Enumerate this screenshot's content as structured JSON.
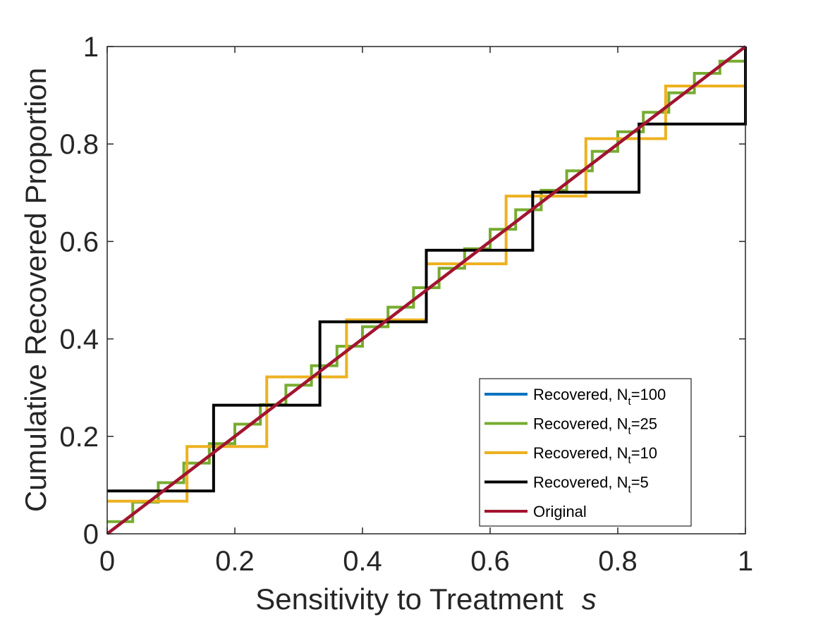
{
  "chart_data": {
    "type": "line",
    "xlabel": "Sensitivity to Treatment",
    "xlabel_symbol": "s",
    "ylabel": "Cumulative Recovered Proportion",
    "xlim": [
      0,
      1
    ],
    "ylim": [
      0,
      1
    ],
    "x_ticks": [
      0,
      0.2,
      0.4,
      0.6,
      0.8,
      1
    ],
    "y_ticks": [
      0,
      0.2,
      0.4,
      0.6,
      0.8,
      1
    ],
    "x_tick_labels": [
      "0",
      "0.2",
      "0.4",
      "0.6",
      "0.8",
      "1"
    ],
    "y_tick_labels": [
      "0",
      "0.2",
      "0.4",
      "0.6",
      "0.8",
      "1"
    ],
    "grid": false,
    "legend_position": "bottom-right",
    "series": [
      {
        "name": "Recovered, N_t=100",
        "label_main": "Recovered, N",
        "label_sub": "t",
        "label_suffix": "=100",
        "color": "#0072BD",
        "step": "diagonal",
        "x": [
          0,
          1
        ],
        "y": [
          0,
          1
        ]
      },
      {
        "name": "Recovered, N_t=25",
        "label_main": "Recovered, N",
        "label_sub": "t",
        "label_suffix": "=25",
        "color": "#77AC30",
        "step": "staircase",
        "bins": 25
      },
      {
        "name": "Recovered, N_t=10",
        "label_main": "Recovered, N",
        "label_sub": "t",
        "label_suffix": "=10",
        "color": "#EDB120",
        "step": "post",
        "x": [
          0,
          0.125,
          0.25,
          0.375,
          0.5,
          0.625,
          0.75,
          0.875,
          1
        ],
        "y": [
          0.067,
          0.179,
          0.322,
          0.439,
          0.554,
          0.693,
          0.811,
          0.919,
          0.919
        ]
      },
      {
        "name": "Recovered, N_t=5",
        "label_main": "Recovered, N",
        "label_sub": "t",
        "label_suffix": "=5",
        "color": "#000000",
        "step": "post",
        "x": [
          0,
          0.1667,
          0.3333,
          0.5,
          0.6667,
          0.8333,
          1
        ],
        "y": [
          0.088,
          0.264,
          0.435,
          0.582,
          0.701,
          0.841,
          0.841
        ],
        "final_rise_to": 1
      },
      {
        "name": "Original",
        "label_main": "Original",
        "label_sub": "",
        "label_suffix": "",
        "color": "#A2142F",
        "step": "none",
        "x": [
          0,
          1
        ],
        "y": [
          0,
          1
        ]
      }
    ]
  }
}
